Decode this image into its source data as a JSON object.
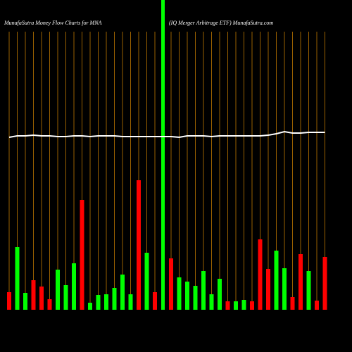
{
  "chart_data": {
    "type": "bar",
    "title": "MunafaSutra  Money Flow  Charts for MNA",
    "subtitle": "(IQ Merger Arbitrage    ETF) MunafaSutra.com",
    "categories": [
      null,
      null,
      null,
      null,
      null,
      null,
      null,
      null,
      null,
      null,
      null,
      null,
      null,
      null,
      null,
      null,
      null,
      null,
      null,
      null,
      null,
      null,
      null,
      null,
      null,
      null,
      null,
      null,
      null,
      null,
      null,
      null,
      null,
      null,
      null,
      null,
      null,
      null,
      null,
      null
    ],
    "values": [
      25,
      89,
      24,
      42,
      33,
      15,
      57,
      35,
      66,
      156,
      10,
      21,
      22,
      31,
      50,
      22,
      184,
      81,
      25,
      440,
      73,
      46,
      40,
      34,
      55,
      22,
      44,
      12,
      12,
      14,
      12,
      100,
      58,
      84,
      59,
      18,
      79,
      55,
      13,
      75
    ],
    "colors": [
      "#ff0000",
      "#00ff00",
      "#00ff00",
      "#ff0000",
      "#ff0000",
      "#ff0000",
      "#00ff00",
      "#00ff00",
      "#00ff00",
      "#ff0000",
      "#00ff00",
      "#00ff00",
      "#00ff00",
      "#00ff00",
      "#00ff00",
      "#00ff00",
      "#ff0000",
      "#00ff00",
      "#ff0000",
      "#00ff00",
      "#ff0000",
      "#00ff00",
      "#00ff00",
      "#00ff00",
      "#00ff00",
      "#00ff00",
      "#00ff00",
      "#ff0000",
      "#00ff00",
      "#00ff00",
      "#ff0000",
      "#ff0000",
      "#ff0000",
      "#00ff00",
      "#00ff00",
      "#ff0000",
      "#ff0000",
      "#00ff00",
      "#ff0000",
      "#ff0000"
    ],
    "line": {
      "color": "#ffffff",
      "values": [
        245,
        247,
        247,
        248,
        247,
        247,
        246,
        246,
        247,
        247,
        246,
        247,
        247,
        247,
        246,
        246,
        246,
        246,
        246,
        246,
        246,
        245,
        247,
        247,
        247,
        246,
        247,
        247,
        247,
        247,
        247,
        247,
        248,
        250,
        253,
        251,
        251,
        252,
        252,
        252
      ]
    },
    "ylim": [
      0,
      440
    ],
    "grid_color": "#c07800"
  }
}
